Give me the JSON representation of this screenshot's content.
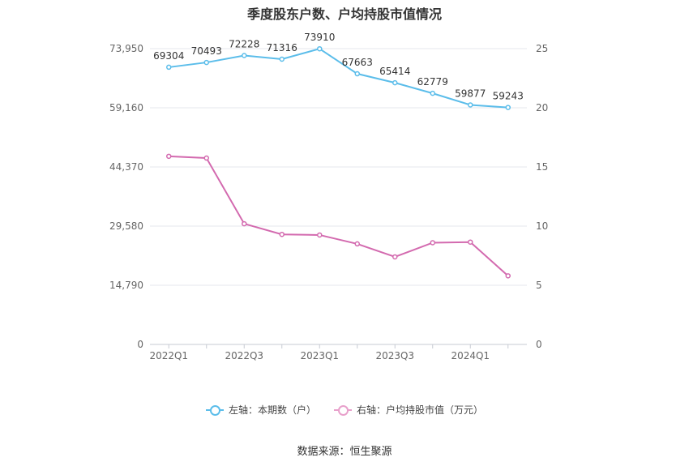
{
  "chart_data": {
    "type": "line",
    "title": "季度股东户数、户均持股市值情况",
    "categories": [
      "2022Q1",
      "2022Q2",
      "2022Q3",
      "2022Q4",
      "2023Q1",
      "2023Q2",
      "2023Q3",
      "2023Q4",
      "2024Q1",
      "2024Q2"
    ],
    "x_tick_labels": [
      "2022Q1",
      "2022Q3",
      "2023Q1",
      "2023Q3",
      "2024Q1"
    ],
    "left_axis": {
      "ylim": [
        0,
        73950
      ],
      "ticks": [
        "0",
        "14,790",
        "29,580",
        "44,370",
        "59,160",
        "73,950"
      ]
    },
    "right_axis": {
      "ylim": [
        0,
        25
      ],
      "ticks": [
        "0",
        "5",
        "10",
        "15",
        "20",
        "25"
      ]
    },
    "series": [
      {
        "name": "左轴：本期数（户）",
        "axis": "left",
        "color": "#5bbdea",
        "values": [
          69304,
          70493,
          72228,
          71316,
          73910,
          67663,
          65414,
          62779,
          59877,
          59243
        ],
        "labels": [
          "69304",
          "70493",
          "72228",
          "71316",
          "73910",
          "67663",
          "65414",
          "62779",
          "59877",
          "59243"
        ]
      },
      {
        "name": "右轴：户均持股市值（万元）",
        "axis": "right",
        "color": "#d36aaf",
        "values": [
          15.9,
          15.75,
          10.2,
          9.3,
          9.25,
          8.5,
          7.4,
          8.6,
          8.65,
          5.8
        ]
      }
    ],
    "grid": true,
    "legend_position": "bottom"
  },
  "legend": {
    "left_label": "左轴：本期数（户）",
    "right_label": "右轴：户均持股市值（万元）",
    "left_color": "#5bbdea",
    "right_color": "#e8a0cb"
  },
  "source": "数据来源：恒生聚源"
}
